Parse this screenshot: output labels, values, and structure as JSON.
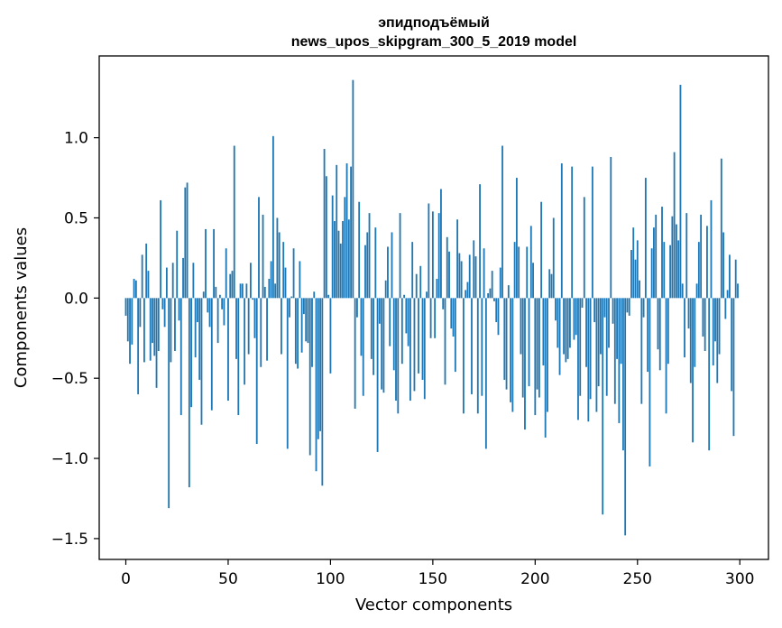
{
  "chart_data": {
    "type": "bar",
    "title": "эпидподъёмый",
    "subtitle": "news_upos_skipgram_300_5_2019 model",
    "xlabel": "Vector components",
    "ylabel": "Components values",
    "xlim": [
      -13,
      314
    ],
    "ylim": [
      -1.63,
      1.51
    ],
    "x_ticks": [
      0,
      50,
      100,
      150,
      200,
      250,
      300
    ],
    "x_tick_labels": [
      "0",
      "50",
      "100",
      "150",
      "200",
      "250",
      "300"
    ],
    "y_ticks": [
      1.0,
      0.5,
      0.0,
      -0.5,
      -1.0,
      -1.5
    ],
    "y_tick_labels": [
      "1.0",
      "0.5",
      "0.0",
      "−0.5",
      "−1.0",
      "−1.5"
    ],
    "bar_color": "#1f77b4",
    "grid": false,
    "x": "0..299",
    "values": [
      -0.11,
      -0.27,
      -0.41,
      -0.29,
      0.12,
      0.11,
      -0.6,
      -0.18,
      0.27,
      -0.4,
      0.34,
      0.17,
      -0.39,
      -0.28,
      -0.36,
      -0.56,
      -0.33,
      0.61,
      -0.07,
      -0.18,
      0.19,
      -1.31,
      -0.4,
      0.22,
      -0.33,
      0.42,
      -0.14,
      -0.73,
      0.25,
      0.69,
      0.72,
      -1.18,
      -0.68,
      0.22,
      -0.37,
      -0.15,
      -0.51,
      -0.79,
      0.04,
      0.43,
      -0.09,
      -0.18,
      -0.7,
      0.43,
      0.07,
      -0.28,
      0.02,
      -0.07,
      -0.17,
      0.31,
      -0.64,
      0.15,
      0.17,
      0.95,
      -0.38,
      -0.73,
      0.09,
      0.09,
      -0.54,
      0.09,
      -0.35,
      0.22,
      -0.01,
      -0.25,
      -0.91,
      0.63,
      -0.43,
      0.52,
      0.07,
      -0.39,
      0.12,
      0.23,
      1.01,
      0.09,
      0.5,
      0.41,
      -0.35,
      0.35,
      0.19,
      -0.94,
      -0.12,
      0.01,
      0.31,
      -0.41,
      -0.44,
      0.23,
      -0.34,
      -0.1,
      -0.27,
      -0.28,
      -0.98,
      -0.43,
      0.04,
      -1.08,
      -0.88,
      -0.83,
      -1.17,
      0.93,
      0.76,
      0.02,
      -0.47,
      0.64,
      0.48,
      0.83,
      0.42,
      0.34,
      0.48,
      0.63,
      0.84,
      0.49,
      0.82,
      1.36,
      -0.69,
      -0.12,
      0.6,
      -0.36,
      -0.61,
      0.33,
      0.41,
      0.53,
      -0.38,
      -0.48,
      0.44,
      -0.96,
      -0.16,
      -0.57,
      -0.59,
      0.11,
      0.32,
      -0.3,
      0.41,
      -0.45,
      -0.64,
      -0.72,
      0.53,
      -0.41,
      0.02,
      -0.22,
      -0.3,
      -0.64,
      0.35,
      -0.58,
      0.15,
      -0.47,
      0.2,
      -0.51,
      -0.63,
      0.04,
      0.59,
      -0.25,
      0.54,
      -0.25,
      0.12,
      0.53,
      0.68,
      -0.07,
      -0.54,
      0.38,
      0.29,
      -0.19,
      -0.24,
      -0.46,
      0.49,
      0.28,
      0.23,
      -0.72,
      0.05,
      0.1,
      0.27,
      -0.6,
      0.36,
      0.26,
      -0.72,
      0.71,
      -0.61,
      0.31,
      -0.94,
      0.03,
      0.06,
      0.17,
      -0.02,
      -0.15,
      -0.23,
      0.19,
      0.95,
      -0.51,
      -0.57,
      0.08,
      -0.65,
      -0.71,
      0.35,
      0.75,
      0.32,
      -0.35,
      -0.62,
      -0.82,
      0.32,
      -0.55,
      0.45,
      0.22,
      -0.73,
      -0.57,
      -0.62,
      0.6,
      -0.42,
      -0.87,
      -0.71,
      0.18,
      0.15,
      0.5,
      -0.14,
      -0.31,
      -0.48,
      0.84,
      -0.35,
      -0.4,
      -0.38,
      -0.31,
      0.82,
      -0.26,
      -0.23,
      -0.76,
      -0.61,
      -0.06,
      0.63,
      -0.43,
      -0.77,
      -0.63,
      0.82,
      -0.15,
      -0.71,
      -0.55,
      -0.35,
      -1.35,
      -0.12,
      -0.61,
      -0.31,
      0.88,
      -0.16,
      -0.66,
      -0.38,
      -0.78,
      -0.41,
      -0.95,
      -1.48,
      -0.09,
      -0.11,
      0.3,
      0.44,
      0.24,
      0.36,
      0.11,
      -0.66,
      -0.12,
      0.75,
      -0.46,
      -1.05,
      0.31,
      0.44,
      0.52,
      -0.32,
      -0.45,
      0.57,
      0.35,
      -0.72,
      -0.41,
      0.33,
      0.51,
      0.91,
      0.46,
      0.36,
      1.33,
      0.09,
      -0.37,
      0.53,
      -0.19,
      -0.53,
      -0.9,
      -0.43,
      0.09,
      0.35,
      0.52,
      -0.24,
      -0.33,
      0.45,
      -0.95,
      0.61,
      -0.42,
      -0.27,
      -0.53,
      -0.35,
      0.87,
      0.41,
      -0.13,
      0.05,
      0.27,
      -0.58,
      -0.86,
      0.24,
      0.09
    ]
  }
}
